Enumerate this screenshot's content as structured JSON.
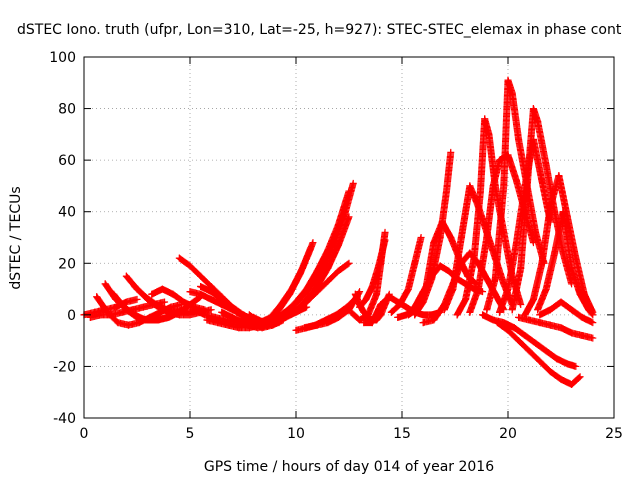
{
  "chart_data": {
    "type": "scatter",
    "title": "dSTEC Iono. truth (ufpr, Lon=310, Lat=-25, h=927): STEC-STEC_elemax in phase cont",
    "xlabel": "GPS time / hours of day 014 of year 2016",
    "ylabel": "dSTEC  / TECUs",
    "xlim": [
      0,
      25
    ],
    "ylim": [
      -40,
      100
    ],
    "xticks": [
      0,
      5,
      10,
      15,
      20,
      25
    ],
    "yticks": [
      -40,
      -20,
      0,
      20,
      40,
      60,
      80,
      100
    ],
    "grid": true,
    "marker": "+",
    "color": "#ff0000",
    "series": [
      {
        "x": [
          0.0,
          0.5,
          1.0,
          1.5,
          2.0,
          2.5
        ],
        "y": [
          0,
          1,
          2,
          3,
          5,
          6
        ]
      },
      {
        "x": [
          0.3,
          0.8,
          1.3,
          1.8,
          2.3,
          2.8,
          3.3,
          3.8
        ],
        "y": [
          -1,
          0,
          0,
          1,
          2,
          3,
          4,
          5
        ]
      },
      {
        "x": [
          0.6,
          1.1,
          1.6,
          2.1,
          2.6,
          3.1,
          3.6,
          4.1,
          4.6
        ],
        "y": [
          7,
          1,
          -3,
          -4,
          -3,
          -1,
          1,
          3,
          4
        ]
      },
      {
        "x": [
          1.0,
          1.5,
          2.0,
          2.5,
          3.0,
          3.5,
          4.0,
          4.5,
          5.0,
          5.5
        ],
        "y": [
          12,
          6,
          2,
          -1,
          -2,
          -2,
          -1,
          1,
          4,
          7
        ]
      },
      {
        "x": [
          1.4,
          1.9,
          2.4,
          2.9,
          3.4,
          3.9,
          4.4,
          4.9
        ],
        "y": [
          8,
          3,
          0,
          -2,
          -2,
          -1,
          1,
          3
        ]
      },
      {
        "x": [
          2.0,
          2.5,
          3.0,
          3.5,
          4.0,
          4.5,
          5.0,
          5.5,
          6.0
        ],
        "y": [
          15,
          10,
          6,
          3,
          1,
          0,
          0,
          1,
          2
        ]
      },
      {
        "x": [
          2.4,
          2.9,
          3.4,
          3.9,
          4.4,
          4.9,
          5.4
        ],
        "y": [
          11,
          7,
          4,
          2,
          1,
          1,
          2
        ]
      },
      {
        "x": [
          3.2,
          3.7,
          4.2,
          4.7,
          5.2,
          5.7
        ],
        "y": [
          8,
          10,
          8,
          5,
          3,
          2
        ]
      },
      {
        "x": [
          4.5,
          5.0,
          5.5,
          6.0,
          6.5,
          7.0,
          7.5,
          8.0,
          8.5,
          9.0
        ],
        "y": [
          22,
          19,
          15,
          11,
          7,
          3,
          0,
          -2,
          -3,
          -3
        ]
      },
      {
        "x": [
          5.0,
          5.5,
          6.0,
          6.5,
          7.0,
          7.5,
          8.0,
          8.5,
          9.0
        ],
        "y": [
          9,
          8,
          6,
          4,
          2,
          0,
          -2,
          -3,
          -3
        ]
      },
      {
        "x": [
          5.2,
          5.7,
          6.2,
          6.7,
          7.2,
          7.7,
          8.2,
          8.7,
          9.2
        ],
        "y": [
          2,
          0,
          -1,
          -2,
          -3,
          -4,
          -5,
          -4,
          -3
        ]
      },
      {
        "x": [
          5.5,
          6.0,
          6.5,
          7.0,
          7.5,
          8.0,
          8.5,
          9.0
        ],
        "y": [
          11,
          9,
          6,
          3,
          0,
          -2,
          -3,
          -3
        ]
      },
      {
        "x": [
          5.8,
          6.3,
          6.8,
          7.3,
          7.8,
          8.3,
          8.8
        ],
        "y": [
          -2,
          -3,
          -4,
          -5,
          -5,
          -4,
          -3
        ]
      },
      {
        "x": [
          6.4,
          6.9,
          7.4,
          7.9,
          8.4,
          8.9,
          9.4
        ],
        "y": [
          5,
          3,
          0,
          -3,
          -5,
          -4,
          -2
        ]
      },
      {
        "x": [
          6.5,
          7.0,
          7.5,
          8.0,
          8.5,
          9.0,
          9.5,
          10.0,
          10.5
        ],
        "y": [
          1,
          -1,
          -3,
          -4,
          -4,
          -3,
          -1,
          1,
          3
        ]
      },
      {
        "x": [
          7.5,
          8.0,
          8.5,
          9.0,
          9.5,
          10.0,
          10.5,
          11.0,
          11.5,
          12.0,
          12.5
        ],
        "y": [
          -2,
          -4,
          -4,
          -3,
          -1,
          2,
          5,
          9,
          13,
          17,
          20
        ]
      },
      {
        "x": [
          7.2,
          7.7,
          8.2,
          8.7,
          9.2,
          9.7,
          10.2,
          10.7
        ],
        "y": [
          1,
          -1,
          -3,
          -2,
          2,
          8,
          16,
          26
        ]
      },
      {
        "x": [
          7.8,
          8.3,
          8.8,
          9.3,
          9.8,
          10.3,
          10.8
        ],
        "y": [
          0,
          -3,
          -1,
          4,
          10,
          18,
          28
        ]
      },
      {
        "x": [
          8.0,
          8.5,
          9.0,
          9.5,
          10.0,
          10.5,
          11.0,
          11.5,
          12.0,
          12.5
        ],
        "y": [
          -1,
          -3,
          -2,
          1,
          5,
          10,
          17,
          25,
          35,
          48
        ]
      },
      {
        "x": [
          8.8,
          9.3,
          9.8,
          10.3,
          10.8,
          11.3,
          11.8,
          12.3,
          12.7
        ],
        "y": [
          -2,
          0,
          3,
          7,
          12,
          19,
          28,
          39,
          51
        ]
      },
      {
        "x": [
          8.5,
          9.0,
          9.5,
          10.0,
          10.5,
          11.0,
          11.5,
          12.0,
          12.5
        ],
        "y": [
          -4,
          -3,
          -1,
          2,
          6,
          11,
          18,
          27,
          38
        ]
      },
      {
        "x": [
          10.0,
          10.5,
          11.0,
          11.5,
          12.0,
          12.5,
          13.0
        ],
        "y": [
          -6,
          -5,
          -4,
          -3,
          -1,
          2,
          9
        ]
      },
      {
        "x": [
          10.4,
          10.9,
          11.4,
          11.9,
          12.4,
          12.9
        ],
        "y": [
          -5,
          -4,
          -2,
          0,
          3,
          7
        ]
      },
      {
        "x": [
          12.8,
          13.0,
          13.2,
          13.4,
          13.6,
          13.8,
          14.0,
          14.2,
          14.4
        ],
        "y": [
          8,
          4,
          1,
          -1,
          -2,
          -2,
          0,
          4,
          8
        ]
      },
      {
        "x": [
          12.6,
          13.0,
          13.4,
          13.8,
          14.0,
          14.2
        ],
        "y": [
          1,
          -2,
          0,
          8,
          20,
          32
        ]
      },
      {
        "x": [
          13.0,
          13.3,
          13.6,
          13.9,
          14.2
        ],
        "y": [
          3,
          6,
          11,
          19,
          29
        ]
      },
      {
        "x": [
          13.2,
          13.6,
          14.0,
          14.4,
          14.8,
          15.2,
          15.6,
          16.0,
          16.4,
          16.8
        ],
        "y": [
          -3,
          -3,
          4,
          7,
          5,
          3,
          1,
          0,
          0,
          1
        ]
      },
      {
        "x": [
          14.5,
          14.9,
          15.3,
          15.6,
          15.9
        ],
        "y": [
          1,
          4,
          10,
          20,
          30
        ]
      },
      {
        "x": [
          14.8,
          15.2,
          15.6,
          16.0,
          16.4,
          16.8,
          17.2,
          17.6,
          18.0,
          18.4,
          18.8
        ],
        "y": [
          -1,
          0,
          3,
          9,
          15,
          19,
          17,
          14,
          12,
          10,
          9
        ]
      },
      {
        "x": [
          15.3,
          15.7,
          16.1,
          16.5,
          16.9,
          17.3,
          17.7,
          18.1,
          18.5
        ],
        "y": [
          0,
          2,
          9,
          28,
          36,
          30,
          22,
          15,
          12
        ]
      },
      {
        "x": [
          15.6,
          16.0,
          16.4,
          16.8,
          17.1,
          17.3
        ],
        "y": [
          0,
          5,
          14,
          30,
          48,
          63
        ]
      },
      {
        "x": [
          16.0,
          16.5,
          17.0,
          17.4,
          17.8,
          18.2,
          18.6,
          19.0,
          19.4,
          19.8
        ],
        "y": [
          -3,
          -2,
          4,
          12,
          20,
          24,
          20,
          14,
          8,
          2
        ]
      },
      {
        "x": [
          17.0,
          17.4,
          17.8,
          18.2,
          18.6,
          19.0,
          19.4,
          19.8,
          20.2
        ],
        "y": [
          2,
          10,
          30,
          50,
          42,
          32,
          22,
          12,
          4
        ]
      },
      {
        "x": [
          17.6,
          18.0,
          18.4,
          18.7,
          18.9,
          19.1,
          19.4,
          19.8,
          20.2,
          20.6
        ],
        "y": [
          0,
          6,
          22,
          48,
          76,
          70,
          50,
          32,
          15,
          4
        ]
      },
      {
        "x": [
          18.2,
          18.6,
          19.0,
          19.3,
          19.6,
          20.0,
          20.4,
          20.8,
          21.2
        ],
        "y": [
          1,
          10,
          30,
          50,
          60,
          62,
          52,
          40,
          28
        ]
      },
      {
        "x": [
          19.0,
          19.4,
          19.8,
          20.0,
          20.2,
          20.5,
          20.9,
          21.3,
          21.7
        ],
        "y": [
          2,
          14,
          50,
          91,
          86,
          68,
          50,
          32,
          20
        ]
      },
      {
        "x": [
          19.6,
          20.0,
          20.4,
          20.8,
          21.2,
          21.6,
          22.0
        ],
        "y": [
          1,
          10,
          28,
          50,
          68,
          52,
          36
        ]
      },
      {
        "x": [
          20.2,
          20.6,
          21.0,
          21.2,
          21.4,
          21.8,
          22.2,
          22.6,
          23.0
        ],
        "y": [
          2,
          18,
          60,
          80,
          75,
          58,
          40,
          24,
          12
        ]
      },
      {
        "x": [
          20.8,
          21.2,
          21.6,
          22.0,
          22.4,
          22.8,
          23.2,
          23.6,
          24.0
        ],
        "y": [
          0,
          6,
          20,
          42,
          54,
          38,
          22,
          8,
          1
        ]
      },
      {
        "x": [
          21.4,
          21.8,
          22.2,
          22.6,
          23.0,
          23.4,
          23.8,
          24.0
        ],
        "y": [
          2,
          10,
          24,
          40,
          18,
          8,
          2,
          0
        ]
      },
      {
        "x": [
          18.8,
          19.3,
          19.8,
          20.3,
          20.8,
          21.3,
          21.8,
          22.3,
          22.8,
          23.2
        ],
        "y": [
          0,
          -2,
          -3,
          -5,
          -8,
          -11,
          -14,
          -17,
          -19,
          -20
        ]
      },
      {
        "x": [
          19.5,
          20.0,
          20.5,
          21.0,
          21.5,
          22.0,
          22.5,
          23.0,
          23.4
        ],
        "y": [
          -3,
          -6,
          -10,
          -14,
          -18,
          -22,
          -25,
          -27,
          -24
        ]
      },
      {
        "x": [
          20.5,
          21.0,
          21.5,
          22.0,
          22.5,
          23.0,
          23.5,
          24.0
        ],
        "y": [
          -1,
          -2,
          -3,
          -4,
          -5,
          -7,
          -8,
          -9
        ]
      },
      {
        "x": [
          21.5,
          22.0,
          22.5,
          23.0,
          23.5,
          24.0
        ],
        "y": [
          0,
          2,
          5,
          2,
          -1,
          -3
        ]
      }
    ]
  }
}
